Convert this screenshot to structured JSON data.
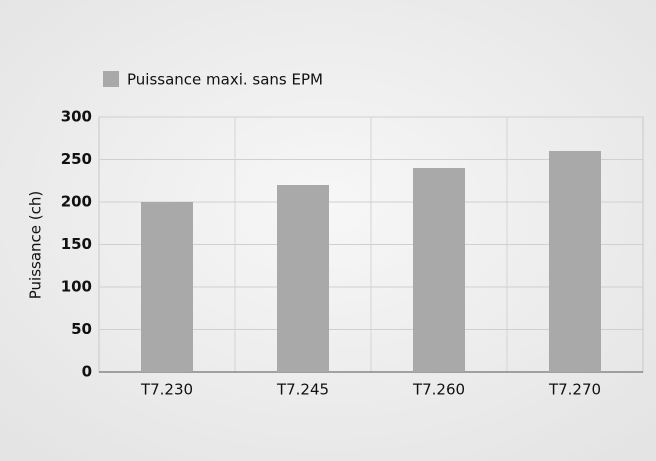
{
  "chart_data": {
    "type": "bar",
    "series": [
      {
        "name": "Puissance maxi. sans EPM",
        "color": "#a9a9a9",
        "values": [
          200,
          220,
          240,
          260
        ]
      }
    ],
    "categories": [
      "T7.230",
      "T7.245",
      "T7.260",
      "T7.270"
    ],
    "ylabel": "Puissance (ch)",
    "ylim": [
      0,
      300
    ],
    "yticks": [
      0,
      50,
      100,
      150,
      200,
      250,
      300
    ],
    "grid": true
  }
}
